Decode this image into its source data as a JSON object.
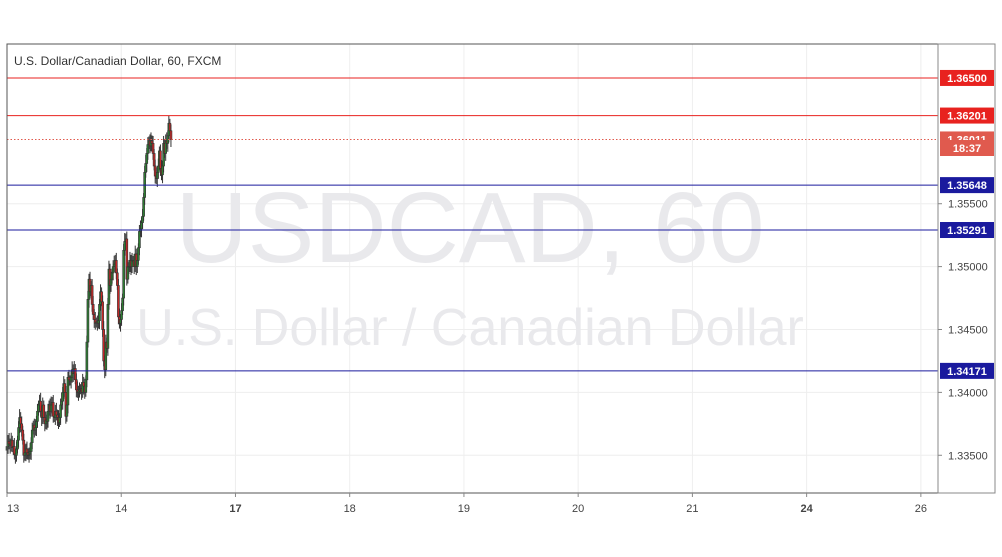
{
  "chart_data": {
    "type": "candlestick",
    "title": "U.S. Dollar/Canadian Dollar, 60, FXCM",
    "watermark_symbol": "USDCAD, 60",
    "watermark_name": "U.S. Dollar / Canadian Dollar",
    "ylim": [
      1.332,
      1.3677
    ],
    "y_ticks": [
      "1.33500",
      "1.34000",
      "1.34500",
      "1.35000",
      "1.35500"
    ],
    "x_ticks": [
      {
        "label": "13",
        "pos": 0.0,
        "bold": false
      },
      {
        "label": "14",
        "pos": 1.0,
        "bold": false
      },
      {
        "label": "17",
        "pos": 2.0,
        "bold": true
      },
      {
        "label": "18",
        "pos": 3.0,
        "bold": false
      },
      {
        "label": "19",
        "pos": 4.0,
        "bold": false
      },
      {
        "label": "20",
        "pos": 5.0,
        "bold": false
      },
      {
        "label": "21",
        "pos": 6.0,
        "bold": false
      },
      {
        "label": "24",
        "pos": 7.0,
        "bold": true
      },
      {
        "label": "26",
        "pos": 8.0,
        "bold": false
      }
    ],
    "x_range": [
      0,
      8.15
    ],
    "levels": [
      {
        "price": 1.365,
        "label": "1.36500",
        "color": "#e8221f",
        "style": "solid"
      },
      {
        "price": 1.36201,
        "label": "1.36201",
        "color": "#e8221f",
        "style": "solid"
      },
      {
        "price": 1.36011,
        "label": "1.36011",
        "color": "#e05a4e",
        "style": "dotted"
      },
      {
        "price": 1.35648,
        "label": "1.35648",
        "color": "#1a1a9e",
        "style": "solid"
      },
      {
        "price": 1.35291,
        "label": "1.35291",
        "color": "#1a1a9e",
        "style": "solid"
      },
      {
        "price": 1.34171,
        "label": "1.34171",
        "color": "#1a1a9e",
        "style": "solid"
      }
    ],
    "countdown": "18:37",
    "colors": {
      "up": "#2e7d32",
      "down": "#c62828",
      "wick": "#333333",
      "grid": "#eeeeee"
    },
    "candle_step": 0.0092,
    "closes": [
      1.3357,
      1.3361,
      1.3359,
      1.3358,
      1.3362,
      1.3356,
      1.3357,
      1.3351,
      1.335,
      1.3355,
      1.3362,
      1.3372,
      1.338,
      1.3375,
      1.337,
      1.3362,
      1.335,
      1.3352,
      1.3355,
      1.3352,
      1.335,
      1.3351,
      1.3353,
      1.336,
      1.337,
      1.3374,
      1.337,
      1.3372,
      1.3377,
      1.3385,
      1.339,
      1.3393,
      1.3385,
      1.338,
      1.339,
      1.338,
      1.3375,
      1.3378,
      1.3377,
      1.3385,
      1.339,
      1.3385,
      1.339,
      1.3392,
      1.3381,
      1.338,
      1.3385,
      1.3382,
      1.338,
      1.3376,
      1.338,
      1.339,
      1.3393,
      1.34,
      1.3407,
      1.34,
      1.3381,
      1.339,
      1.3412,
      1.341,
      1.3409,
      1.3412,
      1.3418,
      1.3415,
      1.3419,
      1.341,
      1.3402,
      1.34,
      1.3401,
      1.3402,
      1.3403,
      1.34,
      1.3408,
      1.3405,
      1.34,
      1.341,
      1.344,
      1.3474,
      1.349,
      1.348,
      1.3485,
      1.347,
      1.3462,
      1.3458,
      1.3455,
      1.3456,
      1.3455,
      1.3457,
      1.347,
      1.348,
      1.3472,
      1.345,
      1.3425,
      1.3418,
      1.344,
      1.3435,
      1.347,
      1.3498,
      1.3485,
      1.349,
      1.3495,
      1.35,
      1.3502,
      1.3505,
      1.3495,
      1.3485,
      1.346,
      1.3455,
      1.3458,
      1.3465,
      1.3475,
      1.3513,
      1.352,
      1.3522,
      1.349,
      1.35,
      1.35,
      1.3505,
      1.35,
      1.3505,
      1.3505,
      1.35,
      1.351,
      1.35,
      1.3505,
      1.3515,
      1.3528,
      1.353,
      1.3535,
      1.354,
      1.3555,
      1.3575,
      1.3582,
      1.359,
      1.3597,
      1.36,
      1.3596,
      1.36,
      1.3598,
      1.359,
      1.358,
      1.3572,
      1.357,
      1.3575,
      1.358,
      1.3592,
      1.3578,
      1.3573,
      1.358,
      1.3598,
      1.359,
      1.36,
      1.3598,
      1.3604,
      1.3614,
      1.3608,
      1.3601
    ]
  }
}
